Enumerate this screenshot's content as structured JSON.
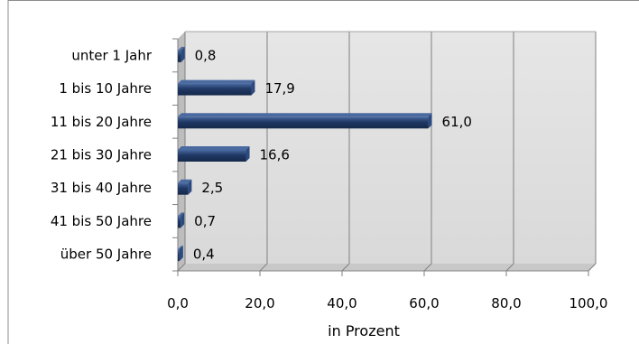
{
  "chart_data": {
    "type": "bar",
    "orientation": "horizontal",
    "categories": [
      "unter 1 Jahr",
      "1 bis 10 Jahre",
      "11 bis 20 Jahre",
      "21 bis 30 Jahre",
      "31 bis 40 Jahre",
      "41 bis 50 Jahre",
      "über 50 Jahre"
    ],
    "values": [
      0.8,
      17.9,
      61.0,
      16.6,
      2.5,
      0.7,
      0.4
    ],
    "value_labels": [
      "0,8",
      "17,9",
      "61,0",
      "16,6",
      "2,5",
      "0,7",
      "0,4"
    ],
    "x_ticks": [
      "0,0",
      "20,0",
      "40,0",
      "60,0",
      "80,0",
      "100,0"
    ],
    "xlim": [
      0,
      100
    ],
    "xlabel": "in Prozent",
    "ylabel": "",
    "title": "",
    "grid": true,
    "legend": "none",
    "colors": {
      "bar": "#1f3864",
      "bar_highlight": "#4a6aa0",
      "plot_back": "#d9d9d9",
      "plot_floor": "#c8c8c8",
      "gridline": "#808080",
      "axis": "#808080",
      "frame": "#8c8c8c"
    }
  }
}
